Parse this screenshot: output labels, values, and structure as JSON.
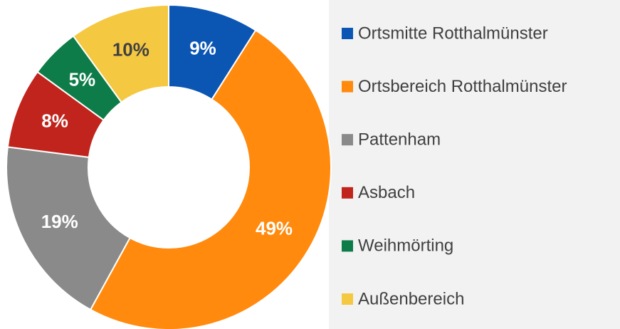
{
  "chart_data": {
    "type": "donut",
    "categories": [
      "Ortsmitte Rotthalmünster",
      "Ortsbereich Rotthalmünster",
      "Pattenham",
      "Asbach",
      "Weihmörting",
      "Außenbereich"
    ],
    "values": [
      9,
      49,
      19,
      8,
      5,
      10
    ],
    "value_labels": [
      "9%",
      "49%",
      "19%",
      "8%",
      "5%",
      "10%"
    ],
    "colors": [
      "#0b56b3",
      "#ff8a0d",
      "#8a8a8a",
      "#c0241c",
      "#0e7c48",
      "#f5c842"
    ],
    "value_label_colors": [
      "#ffffff",
      "#ffffff",
      "#ffffff",
      "#ffffff",
      "#ffffff",
      "#404040"
    ],
    "legend": "right"
  }
}
